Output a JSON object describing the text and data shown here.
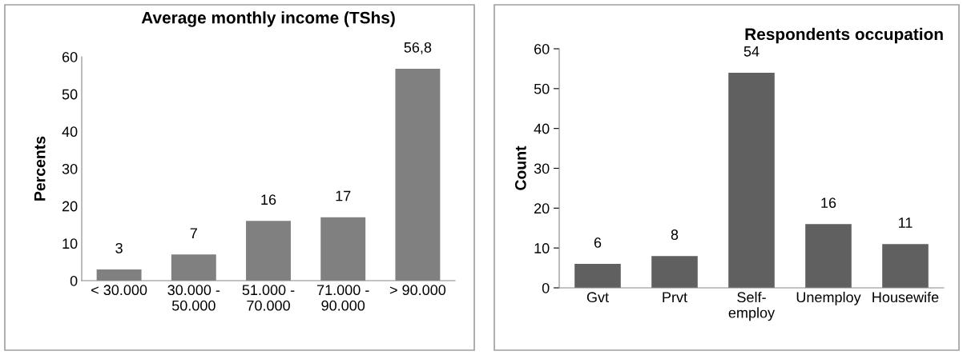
{
  "chart_data": [
    {
      "type": "bar",
      "title": "Average monthly income (TShs)",
      "ylabel": "Percents",
      "categories": [
        "< 30.000",
        "30.000 -\n50.000",
        "51.000 -\n70.000",
        "71.000 -\n90.000",
        "> 90.000"
      ],
      "values": [
        3,
        7,
        16,
        17,
        56.8
      ],
      "value_labels": [
        "3",
        "7",
        "16",
        "17",
        "56,8"
      ],
      "color": "#808080",
      "ylim": [
        0,
        60
      ],
      "yticks": [
        0,
        10,
        20,
        30,
        40,
        50,
        60
      ],
      "grid": false,
      "legend": false
    },
    {
      "type": "bar",
      "title": "Respondents occupation",
      "ylabel": "Count",
      "categories": [
        "Gvt",
        "Prvt",
        "Self-\nemploy",
        "Unemploy",
        "Housewife"
      ],
      "values": [
        6,
        8,
        54,
        16,
        11
      ],
      "data_labels": true,
      "color": "#606060",
      "ylim": [
        0,
        60
      ],
      "yticks": [
        0,
        10,
        20,
        30,
        40,
        50,
        60
      ],
      "grid": false,
      "legend": false
    }
  ]
}
